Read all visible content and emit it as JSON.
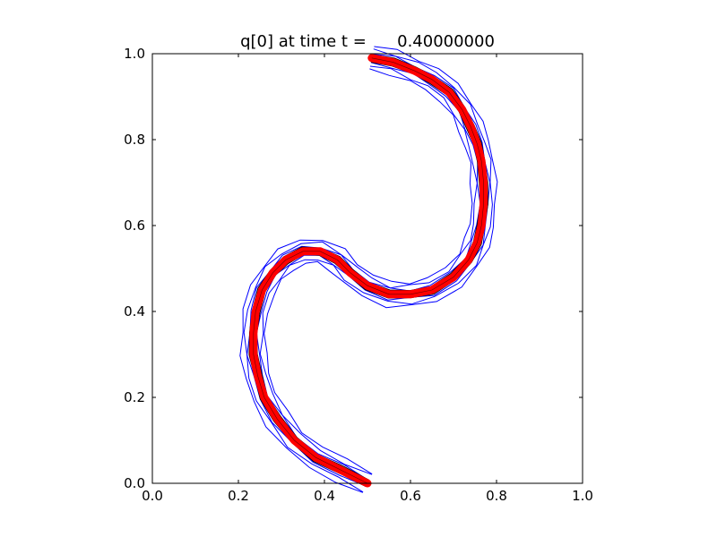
{
  "chart_data": {
    "type": "line",
    "title": "q[0] at time t =      0.40000000",
    "xlabel": "",
    "ylabel": "",
    "xlim": [
      0.0,
      1.0
    ],
    "ylim": [
      0.0,
      1.0
    ],
    "grid": false,
    "x_ticks": [
      "0.0",
      "0.2",
      "0.4",
      "0.6",
      "0.8",
      "1.0"
    ],
    "y_ticks": [
      "0.0",
      "0.2",
      "0.4",
      "0.6",
      "0.8",
      "1.0"
    ],
    "colors": {
      "mesh_contours": "#0000ff",
      "level_contours": "#000000",
      "exact_curve": "#ff0000"
    },
    "exact_curve": {
      "x": [
        0.5,
        0.44,
        0.38,
        0.33,
        0.29,
        0.26,
        0.245,
        0.235,
        0.235,
        0.24,
        0.255,
        0.28,
        0.31,
        0.35,
        0.39,
        0.43,
        0.46,
        0.5,
        0.55,
        0.6,
        0.65,
        0.7,
        0.735,
        0.755,
        0.765,
        0.77,
        0.77,
        0.765,
        0.755,
        0.74,
        0.72,
        0.69,
        0.65,
        0.61,
        0.56,
        0.51
      ],
      "y": [
        0.0,
        0.03,
        0.06,
        0.1,
        0.15,
        0.2,
        0.25,
        0.3,
        0.35,
        0.4,
        0.45,
        0.49,
        0.52,
        0.54,
        0.54,
        0.52,
        0.49,
        0.46,
        0.44,
        0.44,
        0.45,
        0.48,
        0.52,
        0.56,
        0.6,
        0.65,
        0.7,
        0.75,
        0.79,
        0.83,
        0.87,
        0.91,
        0.94,
        0.96,
        0.98,
        0.99
      ]
    },
    "level_offsets": [
      -0.009,
      -0.004,
      0.004,
      0.009
    ],
    "mesh_offsets": [
      -0.028,
      -0.019,
      -0.011,
      0.011,
      0.019,
      0.028
    ]
  }
}
